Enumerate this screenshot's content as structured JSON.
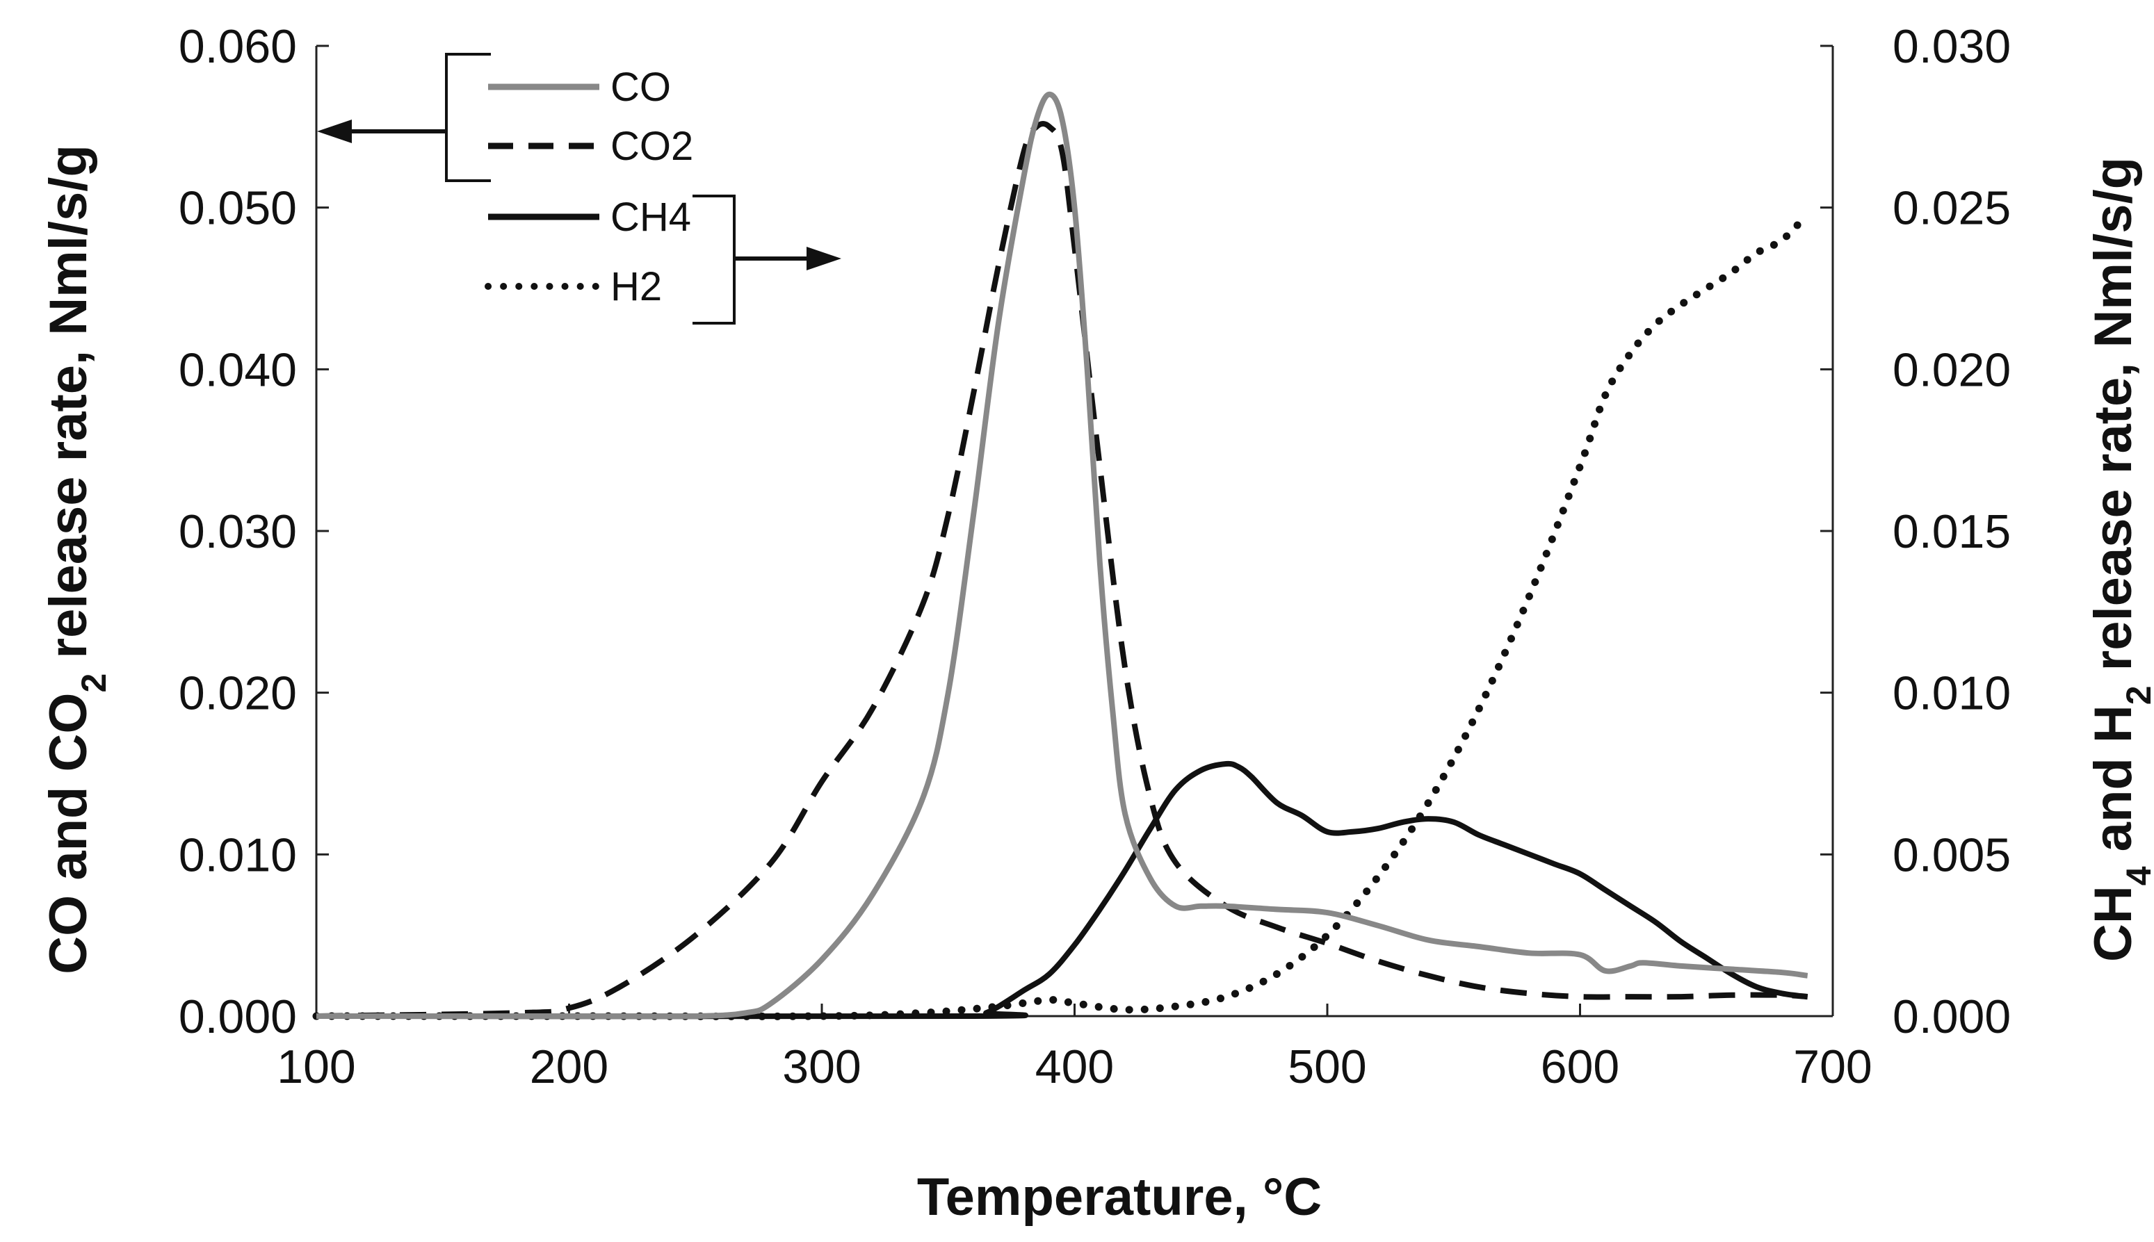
{
  "chart_data": {
    "type": "line",
    "title": "",
    "xlabel": "Temperature, °C",
    "ylabel_left": {
      "pre": "CO and CO",
      "sub": "2",
      "post": " release rate, Nml/s/g"
    },
    "ylabel_right": {
      "p1": "CH",
      "s1": "4",
      "p2": " and H",
      "s2": "2",
      "p3": " release rate, Nml/s/g"
    },
    "xlim": [
      100,
      700
    ],
    "ylim_left": [
      0,
      0.06
    ],
    "ylim_right": [
      0,
      0.03
    ],
    "x_ticks": [
      "100",
      "200",
      "300",
      "400",
      "500",
      "600",
      "700"
    ],
    "y_left_ticks": [
      "0.000",
      "0.010",
      "0.020",
      "0.030",
      "0.040",
      "0.050",
      "0.060"
    ],
    "y_right_ticks": [
      "0.000",
      "0.005",
      "0.010",
      "0.015",
      "0.020",
      "0.025",
      "0.030"
    ],
    "grid": false,
    "legend_position": "top-left",
    "legend_groups": [
      {
        "axis": "left",
        "series": [
          "CO",
          "CO2"
        ]
      },
      {
        "axis": "right",
        "series": [
          "CH4",
          "H2"
        ]
      }
    ],
    "series": [
      {
        "name": "CO",
        "axis": "left",
        "color": "#888888",
        "style": "solid",
        "x": [
          100,
          200,
          250,
          270,
          280,
          300,
          320,
          340,
          350,
          360,
          370,
          380,
          385,
          390,
          395,
          400,
          405,
          410,
          415,
          420,
          430,
          440,
          450,
          460,
          480,
          500,
          520,
          540,
          560,
          580,
          600,
          610,
          620,
          625,
          640,
          660,
          680,
          690
        ],
        "y": [
          0.0,
          0.0,
          0.0,
          0.0002,
          0.0008,
          0.0035,
          0.0075,
          0.0135,
          0.02,
          0.031,
          0.043,
          0.052,
          0.0555,
          0.057,
          0.0555,
          0.05,
          0.04,
          0.028,
          0.019,
          0.0125,
          0.0085,
          0.0068,
          0.0068,
          0.0068,
          0.0066,
          0.0064,
          0.0056,
          0.0047,
          0.0043,
          0.0039,
          0.0038,
          0.0028,
          0.0031,
          0.0033,
          0.0031,
          0.0029,
          0.0027,
          0.0025
        ]
      },
      {
        "name": "CO2",
        "axis": "left",
        "color": "#111111",
        "style": "dashed",
        "x": [
          100,
          180,
          200,
          220,
          250,
          280,
          300,
          320,
          340,
          350,
          360,
          370,
          380,
          385,
          390,
          395,
          400,
          410,
          420,
          430,
          440,
          460,
          480,
          500,
          520,
          540,
          560,
          580,
          600,
          620,
          640,
          660,
          680,
          690
        ],
        "y": [
          0.0,
          0.0002,
          0.0005,
          0.0018,
          0.005,
          0.0095,
          0.0145,
          0.019,
          0.0255,
          0.031,
          0.0385,
          0.0465,
          0.0535,
          0.055,
          0.055,
          0.0535,
          0.0475,
          0.034,
          0.0215,
          0.0135,
          0.0095,
          0.0068,
          0.0055,
          0.0045,
          0.0034,
          0.0025,
          0.0018,
          0.0014,
          0.0012,
          0.0012,
          0.0012,
          0.0013,
          0.0013,
          0.0012
        ]
      },
      {
        "name": "CH4",
        "axis": "right",
        "color": "#111111",
        "style": "solid",
        "x": [
          100,
          360,
          365,
          370,
          380,
          390,
          400,
          410,
          420,
          430,
          440,
          450,
          460,
          465,
          470,
          480,
          490,
          500,
          510,
          520,
          530,
          540,
          550,
          560,
          570,
          580,
          590,
          600,
          610,
          620,
          630,
          640,
          650,
          660,
          670,
          680,
          690
        ],
        "y": [
          0.0,
          0.0,
          0.0001,
          0.0003,
          0.0008,
          0.0013,
          0.0022,
          0.0033,
          0.0045,
          0.0058,
          0.007,
          0.0076,
          0.0078,
          0.0077,
          0.0074,
          0.0066,
          0.0062,
          0.0057,
          0.0057,
          0.0058,
          0.006,
          0.0061,
          0.006,
          0.0056,
          0.0053,
          0.005,
          0.0047,
          0.0044,
          0.0039,
          0.0034,
          0.0029,
          0.0023,
          0.0018,
          0.0013,
          0.0009,
          0.0007,
          0.0006
        ]
      },
      {
        "name": "H2",
        "axis": "right",
        "color": "#111111",
        "style": "dotted",
        "x": [
          100,
          200,
          300,
          340,
          370,
          390,
          400,
          420,
          440,
          460,
          480,
          500,
          520,
          540,
          560,
          580,
          600,
          610,
          620,
          630,
          640,
          650,
          660,
          670,
          680,
          690
        ],
        "y": [
          0.0,
          0.0,
          0.0,
          0.0001,
          0.0003,
          0.0005,
          0.0004,
          0.0002,
          0.0003,
          0.0006,
          0.0013,
          0.0025,
          0.0043,
          0.0066,
          0.0095,
          0.013,
          0.017,
          0.0192,
          0.0205,
          0.0214,
          0.022,
          0.0225,
          0.023,
          0.0236,
          0.024,
          0.0248
        ]
      }
    ]
  }
}
